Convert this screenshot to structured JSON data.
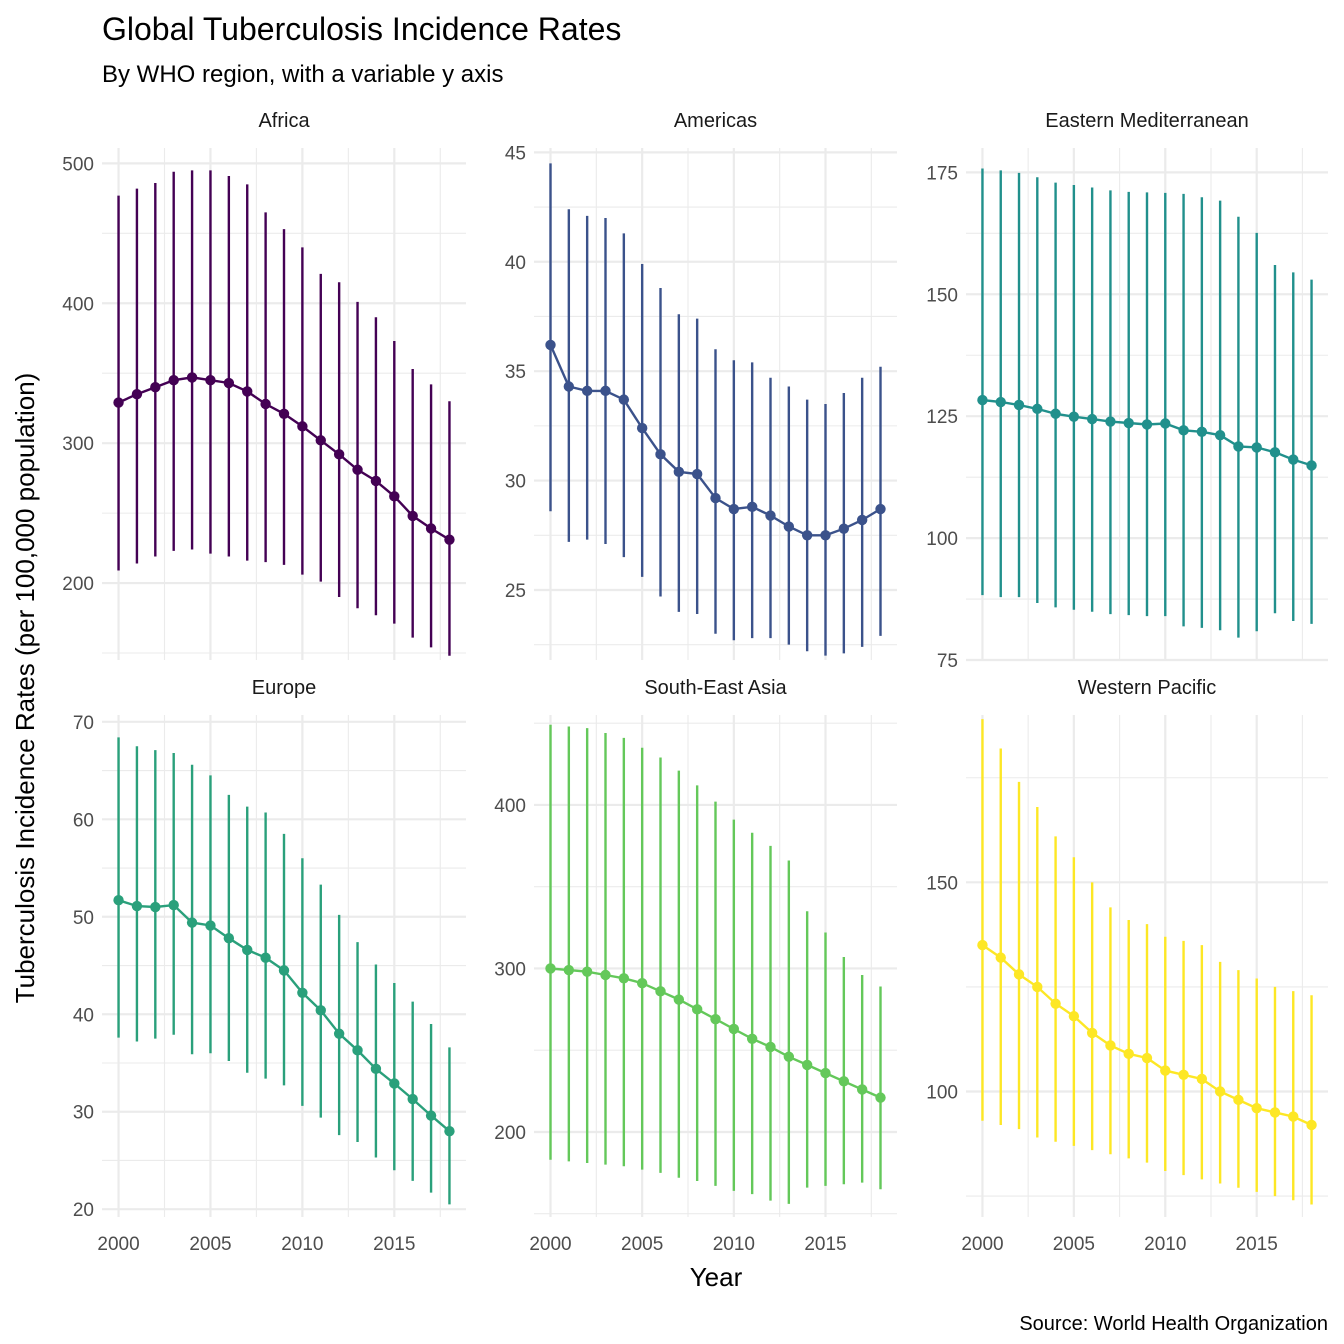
{
  "chart_data": {
    "type": "line",
    "title": "Global Tuberculosis Incidence Rates",
    "subtitle": "By WHO region, with a variable y axis",
    "xlabel": "Year",
    "ylabel": "Tuberculosis Incidence Rates (per 100,000 population)",
    "caption": "Source: World Health Organization",
    "grid": true,
    "x": [
      2000,
      2001,
      2002,
      2003,
      2004,
      2005,
      2006,
      2007,
      2008,
      2009,
      2010,
      2011,
      2012,
      2013,
      2014,
      2015,
      2016,
      2017,
      2018
    ],
    "x_ticks": [
      2000,
      2005,
      2010,
      2015
    ],
    "xlim": [
      1999.1,
      2018.9
    ],
    "facets": [
      {
        "name": "Africa",
        "color": "#440154",
        "ylim": [
          145,
          511
        ],
        "y_ticks": [
          200,
          300,
          400,
          500
        ],
        "values": [
          329,
          335,
          340,
          345,
          347,
          345,
          343,
          337,
          328,
          321,
          312,
          302,
          292,
          281,
          273,
          262,
          248,
          239,
          231
        ],
        "lower": [
          209,
          214,
          219,
          223,
          224,
          221,
          219,
          216,
          215,
          213,
          206,
          201,
          190,
          182,
          177,
          171,
          161,
          154,
          148
        ],
        "upper": [
          477,
          482,
          486,
          494,
          495,
          495,
          491,
          485,
          465,
          453,
          440,
          421,
          415,
          401,
          390,
          373,
          353,
          342,
          330
        ]
      },
      {
        "name": "Americas",
        "color": "#3B528B",
        "ylim": [
          21.8,
          45.2
        ],
        "y_ticks": [
          25,
          30,
          35,
          40,
          45
        ],
        "values": [
          36.2,
          34.3,
          34.1,
          34.1,
          33.7,
          32.4,
          31.2,
          30.4,
          30.3,
          29.2,
          28.7,
          28.8,
          28.4,
          27.9,
          27.5,
          27.5,
          27.8,
          28.2,
          28.7
        ],
        "lower": [
          28.6,
          27.2,
          27.3,
          27.1,
          26.5,
          25.6,
          24.7,
          24.0,
          23.9,
          23.0,
          22.7,
          22.8,
          22.8,
          22.5,
          22.2,
          22.0,
          22.1,
          22.4,
          22.9
        ],
        "upper": [
          44.5,
          42.4,
          42.1,
          42.0,
          41.3,
          39.9,
          38.8,
          37.6,
          37.4,
          36.0,
          35.5,
          35.4,
          34.7,
          34.3,
          33.7,
          33.5,
          34.0,
          34.7,
          35.2
        ]
      },
      {
        "name": "Eastern Mediterranean",
        "color": "#21908C",
        "ylim": [
          75,
          180
        ],
        "y_ticks": [
          75,
          100,
          125,
          150,
          175
        ],
        "values": [
          128.3,
          127.9,
          127.3,
          126.5,
          125.5,
          124.9,
          124.4,
          123.9,
          123.6,
          123.3,
          123.5,
          122.1,
          121.8,
          121.1,
          118.8,
          118.6,
          117.6,
          116.1,
          114.9
        ],
        "lower": [
          88.3,
          87.9,
          87.9,
          86.7,
          85.8,
          85.3,
          84.9,
          84.4,
          84.2,
          84.0,
          84.0,
          81.9,
          81.6,
          81.1,
          79.6,
          80.9,
          84.6,
          83.0,
          82.4
        ],
        "upper": [
          175.8,
          175.4,
          174.9,
          174.0,
          172.9,
          172.4,
          171.9,
          171.3,
          171.0,
          170.9,
          170.8,
          170.6,
          169.9,
          169.2,
          165.9,
          162.6,
          156.0,
          154.5,
          153.0
        ]
      },
      {
        "name": "Europe",
        "color": "#2AA07B",
        "ylim": [
          19.2,
          70.7
        ],
        "y_ticks": [
          20,
          30,
          40,
          50,
          60,
          70
        ],
        "values": [
          51.7,
          51.1,
          51.0,
          51.2,
          49.4,
          49.1,
          47.8,
          46.6,
          45.8,
          44.5,
          42.2,
          40.4,
          38.0,
          36.3,
          34.4,
          32.9,
          31.3,
          29.6,
          28.0
        ],
        "lower": [
          37.6,
          37.2,
          37.5,
          37.9,
          35.9,
          36.0,
          35.2,
          34.0,
          33.4,
          32.7,
          30.6,
          29.4,
          27.6,
          26.9,
          25.3,
          24.0,
          22.9,
          21.7,
          20.5
        ],
        "upper": [
          68.4,
          67.5,
          67.1,
          66.8,
          65.6,
          64.5,
          62.5,
          61.3,
          60.7,
          58.5,
          56.0,
          53.3,
          50.2,
          47.4,
          45.1,
          43.2,
          41.3,
          39.0,
          36.6
        ]
      },
      {
        "name": "South-East Asia",
        "color": "#64C85A",
        "ylim": [
          148,
          455
        ],
        "y_ticks": [
          200,
          300,
          400
        ],
        "values": [
          300,
          299,
          298,
          296,
          294,
          291,
          286,
          281,
          275,
          269,
          263,
          257,
          252,
          246,
          241,
          236,
          231,
          226,
          221
        ],
        "lower": [
          183,
          182,
          181,
          180,
          179,
          177,
          175,
          172,
          170,
          167,
          164,
          162,
          158,
          156,
          166,
          167,
          168,
          169,
          165
        ],
        "upper": [
          449,
          448,
          447,
          444,
          441,
          435,
          429,
          421,
          412,
          402,
          391,
          383,
          375,
          366,
          335,
          322,
          307,
          296,
          289
        ]
      },
      {
        "name": "Western Pacific",
        "color": "#FDE725",
        "ylim": [
          70,
          190
        ],
        "y_ticks": [
          100,
          150
        ],
        "values": [
          135,
          132,
          128,
          125,
          121,
          118,
          114,
          111,
          109,
          108,
          105,
          104,
          103,
          100,
          98,
          96,
          95,
          94,
          92
        ],
        "lower": [
          93,
          92,
          91,
          89,
          88,
          87,
          86,
          85,
          84,
          83,
          81,
          80,
          79,
          78,
          77,
          76,
          75,
          74,
          73
        ],
        "upper": [
          189,
          182,
          174,
          168,
          161,
          156,
          150,
          144,
          141,
          140,
          137,
          136,
          135,
          131,
          129,
          127,
          125,
          124,
          123
        ]
      }
    ]
  }
}
